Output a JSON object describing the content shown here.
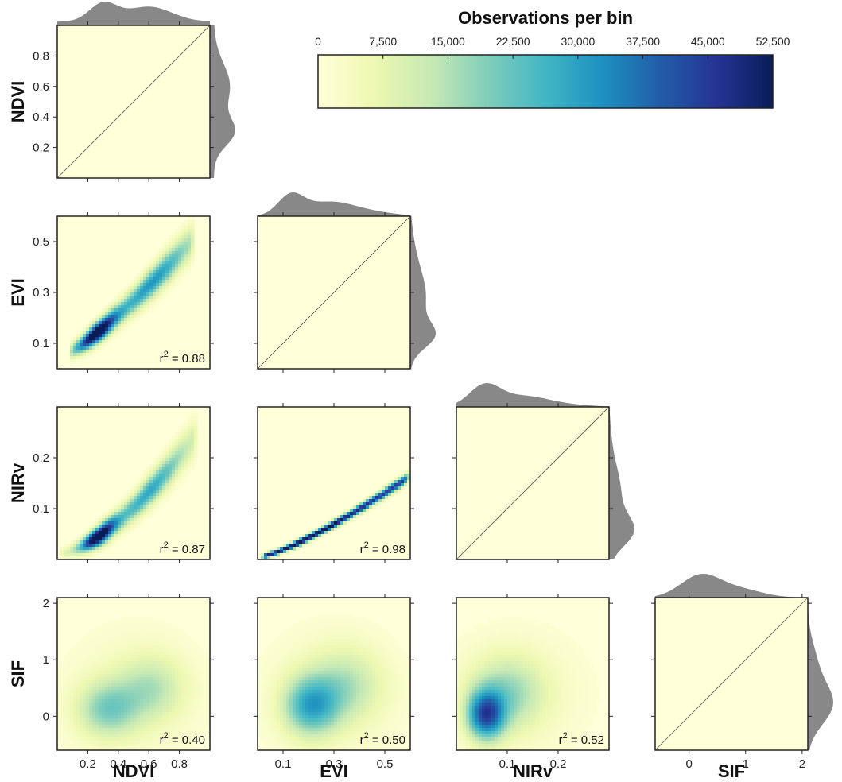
{
  "colorbar": {
    "title": "Observations per bin",
    "tick_labels": [
      "0",
      "7,500",
      "15,000",
      "22,500",
      "30,000",
      "37,500",
      "45,000",
      "52,500"
    ],
    "range": [
      0,
      52500
    ],
    "colormap": [
      "#ffffd9",
      "#edf8b1",
      "#c7e9b4",
      "#7fcdbb",
      "#41b6c4",
      "#1d91c0",
      "#225ea8",
      "#253494",
      "#081d58"
    ]
  },
  "colors": {
    "panel_background": "#ffffd9",
    "marginal_fill": "#888888",
    "frame": "#222222"
  },
  "chart_data": {
    "type": "heatmap",
    "variables": [
      {
        "name": "NDVI",
        "range": [
          0,
          1
        ],
        "ticks": [
          0.2,
          0.4,
          0.6,
          0.8
        ],
        "tick_labels": [
          "0.2",
          "0.4",
          "0.6",
          "0.8"
        ]
      },
      {
        "name": "EVI",
        "range": [
          0,
          0.6
        ],
        "ticks": [
          0.1,
          0.3,
          0.5
        ],
        "tick_labels": [
          "0.1",
          "0.3",
          "0.5"
        ]
      },
      {
        "name": "NIRv",
        "range": [
          0,
          0.3
        ],
        "ticks": [
          0.1,
          0.2
        ],
        "tick_labels": [
          "0.1",
          "0.2"
        ]
      },
      {
        "name": "SIF",
        "range": [
          -0.6,
          2.1
        ],
        "ticks": [
          0,
          1,
          2
        ],
        "tick_labels": [
          "0",
          "1",
          "2"
        ]
      }
    ],
    "pairs": [
      {
        "x": "NDVI",
        "y": "EVI",
        "r2_label": "r",
        "r2_value": "= 0.88"
      },
      {
        "x": "NDVI",
        "y": "NIRv",
        "r2_label": "r",
        "r2_value": "= 0.87"
      },
      {
        "x": "EVI",
        "y": "NIRv",
        "r2_label": "r",
        "r2_value": "= 0.98"
      },
      {
        "x": "NDVI",
        "y": "SIF",
        "r2_label": "r",
        "r2_value": "= 0.40"
      },
      {
        "x": "EVI",
        "y": "SIF",
        "r2_label": "r",
        "r2_value": "= 0.50"
      },
      {
        "x": "NIRv",
        "y": "SIF",
        "r2_label": "r",
        "r2_value": "= 0.52"
      }
    ],
    "superscript": "2"
  }
}
